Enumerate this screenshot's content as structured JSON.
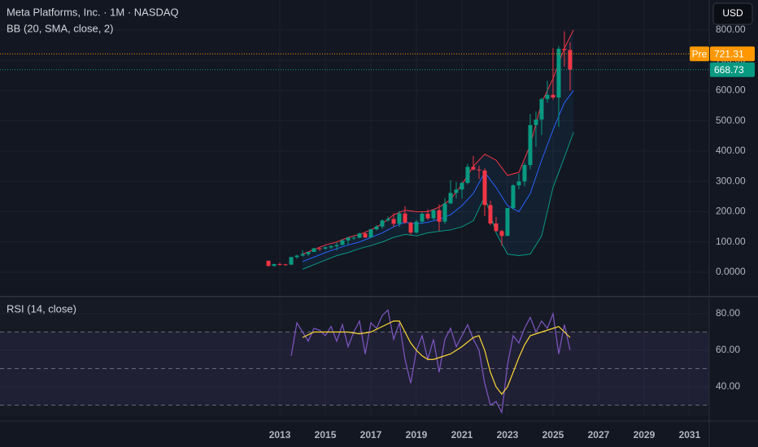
{
  "chart_data": [
    {
      "type": "candlestick",
      "title": "Meta Platforms, Inc. · 1M · NASDAQ",
      "subtitle": "BB (20, SMA, close, 2)",
      "currency": "USD",
      "xlim": [
        2000.71,
        2031.86
      ],
      "ylim": [
        -72.5,
        899
      ],
      "yticks": [
        {
          "value": 0,
          "label": "0.0000"
        },
        {
          "value": 100,
          "label": "100.00"
        },
        {
          "value": 200,
          "label": "200.00"
        },
        {
          "value": 300,
          "label": "300.00"
        },
        {
          "value": 400,
          "label": "400.00"
        },
        {
          "value": 500,
          "label": "500.00"
        },
        {
          "value": 600,
          "label": "600.00"
        },
        {
          "value": 700,
          "label": "700.00"
        },
        {
          "value": 800,
          "label": "800.00"
        }
      ],
      "up_color": "#089981",
      "down_color": "#f23645",
      "candles": {
        "x": [
          2012.5,
          2012.75,
          2013,
          2013.25,
          2013.5,
          2013.75,
          2014,
          2014.25,
          2014.5,
          2014.75,
          2015,
          2015.25,
          2015.5,
          2015.75,
          2016,
          2016.25,
          2016.5,
          2016.75,
          2017,
          2017.25,
          2017.5,
          2017.75,
          2018,
          2018.25,
          2018.5,
          2018.75,
          2019,
          2019.25,
          2019.5,
          2019.75,
          2020,
          2020.25,
          2020.5,
          2020.75,
          2021,
          2021.25,
          2021.5,
          2021.75,
          2022,
          2022.25,
          2022.5,
          2022.75,
          2023,
          2023.25,
          2023.5,
          2023.75,
          2024,
          2024.25,
          2024.5,
          2024.75,
          2025,
          2025.25,
          2025.5,
          2025.75
        ],
        "open": [
          38,
          21,
          27,
          26,
          25,
          50,
          55,
          60,
          67,
          79,
          78,
          82,
          86,
          90,
          105,
          114,
          114,
          128,
          115,
          142,
          151,
          171,
          176,
          160,
          194,
          164,
          131,
          167,
          193,
          178,
          205,
          167,
          227,
          262,
          273,
          295,
          348,
          339,
          336,
          222,
          161,
          136,
          120,
          212,
          287,
          300,
          354,
          486,
          504,
          572,
          586,
          577,
          738,
          734
        ],
        "high": [
          38,
          28,
          32,
          28,
          51,
          58,
          73,
          68,
          80,
          82,
          86,
          89,
          99,
          110,
          117,
          121,
          131,
          133,
          143,
          156,
          175,
          184,
          195,
          203,
          218,
          166,
          173,
          198,
          208,
          208,
          224,
          245,
          304,
          298,
          300,
          358,
          384,
          352,
          343,
          236,
          183,
          140,
          213,
          291,
          326,
          362,
          523,
          531,
          577,
          632,
          740,
          747,
          796,
          760
        ],
        "low": [
          18,
          18,
          22,
          22,
          24,
          45,
          52,
          54,
          67,
          70,
          74,
          77,
          72,
          89,
          90,
          106,
          112,
          113,
          115,
          138,
          144,
          168,
          150,
          150,
          160,
          124,
          128,
          160,
          173,
          173,
          137,
          160,
          226,
          244,
          244,
          290,
          336,
          308,
          185,
          155,
          134,
          88,
          122,
          207,
          274,
          284,
          340,
          414,
          453,
          560,
          570,
          480,
          680,
          600
        ],
        "close": [
          21,
          27,
          26,
          25,
          50,
          55,
          60,
          67,
          79,
          78,
          82,
          86,
          90,
          105,
          114,
          114,
          128,
          115,
          142,
          151,
          171,
          176,
          160,
          194,
          164,
          131,
          167,
          193,
          178,
          205,
          167,
          227,
          262,
          273,
          295,
          348,
          339,
          336,
          222,
          161,
          136,
          120,
          212,
          287,
          300,
          354,
          486,
          504,
          572,
          586,
          577,
          738,
          734,
          668.73
        ]
      },
      "pre_market": {
        "label": "Pre",
        "value": 721.31
      },
      "bands": {
        "x": [
          2014,
          2014.5,
          2015,
          2015.5,
          2016,
          2016.5,
          2017,
          2017.5,
          2018,
          2018.5,
          2019,
          2019.5,
          2020,
          2020.5,
          2021,
          2021.5,
          2022,
          2022.5,
          2023,
          2023.5,
          2024,
          2024.5,
          2025,
          2025.5,
          2025.9
        ],
        "series": [
          {
            "color": "#f23645",
            "values": [
              60,
              75,
              90,
              100,
              115,
              125,
              140,
              160,
              190,
              205,
              200,
              200,
              215,
              240,
              290,
              350,
              390,
              370,
              320,
              330,
              420,
              560,
              640,
              740,
              800
            ]
          },
          {
            "color": "#2962ff",
            "values": [
              35,
              50,
              65,
              78,
              90,
              100,
              115,
              130,
              150,
              165,
              160,
              165,
              175,
              190,
              220,
              260,
              330,
              280,
              220,
              200,
              260,
              370,
              470,
              560,
              600
            ]
          },
          {
            "color": "#089981",
            "values": [
              10,
              25,
              40,
              55,
              65,
              78,
              88,
              100,
              115,
              125,
              120,
              130,
              135,
              140,
              150,
              170,
              250,
              130,
              60,
              55,
              60,
              120,
              280,
              380,
              462
            ]
          }
        ]
      }
    },
    {
      "type": "line",
      "title": "RSI (14, close)",
      "xlim": [
        2000.71,
        2031.86
      ],
      "xticks": [
        2013,
        2015,
        2017,
        2019,
        2021,
        2023,
        2025,
        2027,
        2029,
        2031
      ],
      "ylim": [
        24,
        88
      ],
      "yticks": [
        {
          "value": 40,
          "label": "40.00"
        },
        {
          "value": 60,
          "label": "60.00"
        },
        {
          "value": 80,
          "label": "80.00"
        }
      ],
      "levels": [
        70,
        50,
        30
      ],
      "series": [
        {
          "color": "#7e57c2",
          "x": [
            2013.5,
            2013.75,
            2014,
            2014.25,
            2014.5,
            2014.75,
            2015,
            2015.25,
            2015.5,
            2015.75,
            2016,
            2016.25,
            2016.5,
            2016.75,
            2017,
            2017.25,
            2017.5,
            2017.75,
            2018,
            2018.25,
            2018.5,
            2018.75,
            2019,
            2019.25,
            2019.5,
            2019.75,
            2020,
            2020.25,
            2020.5,
            2020.75,
            2021,
            2021.25,
            2021.5,
            2021.75,
            2022,
            2022.25,
            2022.5,
            2022.75,
            2023,
            2023.25,
            2023.5,
            2023.75,
            2024,
            2024.25,
            2024.5,
            2024.75,
            2025,
            2025.25,
            2025.5,
            2025.75
          ],
          "values": [
            57,
            75,
            70,
            65,
            72,
            71,
            68,
            73,
            65,
            74,
            62,
            70,
            76,
            58,
            75,
            72,
            79,
            82,
            66,
            75,
            55,
            42,
            60,
            68,
            55,
            66,
            48,
            66,
            72,
            62,
            68,
            74,
            66,
            60,
            42,
            30,
            32,
            26,
            52,
            68,
            64,
            72,
            78,
            70,
            76,
            72,
            80,
            58,
            74,
            60
          ]
        },
        {
          "color": "#fdd835",
          "x": [
            2014,
            2014.5,
            2015,
            2015.5,
            2016,
            2016.5,
            2017,
            2017.5,
            2018,
            2018.25,
            2018.5,
            2018.75,
            2019,
            2019.25,
            2019.5,
            2019.75,
            2020,
            2020.5,
            2021,
            2021.5,
            2021.75,
            2022,
            2022.25,
            2022.5,
            2022.75,
            2023,
            2023.25,
            2023.5,
            2023.75,
            2024,
            2024.5,
            2025,
            2025.25,
            2025.5,
            2025.75
          ],
          "values": [
            67,
            70,
            70,
            70,
            70,
            69,
            70,
            73,
            76,
            76,
            70,
            64,
            60,
            57,
            55,
            55,
            56,
            58,
            62,
            67,
            68,
            60,
            48,
            40,
            36,
            40,
            48,
            56,
            63,
            68,
            70,
            72,
            73,
            70,
            67
          ]
        }
      ]
    }
  ]
}
